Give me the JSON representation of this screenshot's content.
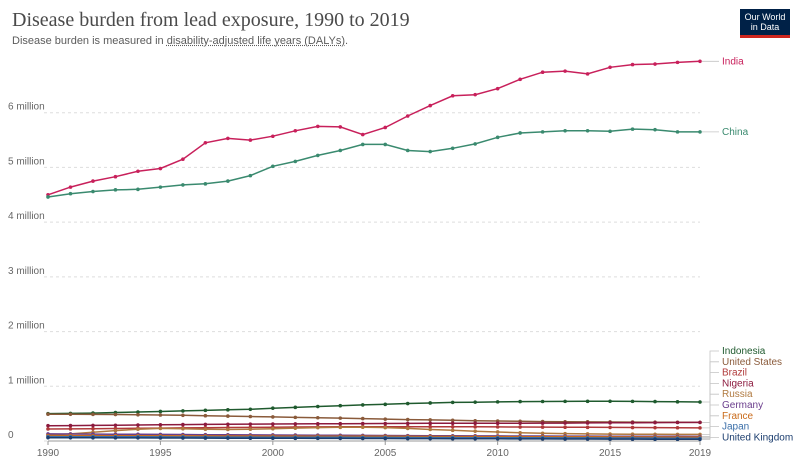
{
  "header": {
    "title": "Disease burden from lead exposure, 1990 to 2019",
    "subtitle_prefix": "Disease burden is measured in ",
    "subtitle_link": "disability-adjusted life years (DALYs)",
    "subtitle_suffix": ".",
    "logo_line1": "Our World",
    "logo_line2": "in Data",
    "logo_bg": "#002147",
    "logo_accent": "#ce261e"
  },
  "chart_data": {
    "type": "line",
    "title": "Disease burden from lead exposure, 1990 to 2019",
    "xlabel": "",
    "ylabel": "",
    "xlim": [
      1990,
      2019
    ],
    "ylim": [
      0,
      7000000
    ],
    "grid": true,
    "x_ticks": [
      1990,
      1995,
      2000,
      2005,
      2010,
      2015,
      2019
    ],
    "y_ticks": [
      {
        "value": 0,
        "label": "0"
      },
      {
        "value": 1000000,
        "label": "1 million"
      },
      {
        "value": 2000000,
        "label": "2 million"
      },
      {
        "value": 3000000,
        "label": "3 million"
      },
      {
        "value": 4000000,
        "label": "4 million"
      },
      {
        "value": 5000000,
        "label": "5 million"
      },
      {
        "value": 6000000,
        "label": "6 million"
      }
    ],
    "legend_placement": "right, inline labels",
    "x": [
      1990,
      1991,
      1992,
      1993,
      1994,
      1995,
      1996,
      1997,
      1998,
      1999,
      2000,
      2001,
      2002,
      2003,
      2004,
      2005,
      2006,
      2007,
      2008,
      2009,
      2010,
      2011,
      2012,
      2013,
      2014,
      2015,
      2016,
      2017,
      2018,
      2019
    ],
    "series": [
      {
        "name": "India",
        "color": "#c8205b",
        "values": [
          4500000,
          4640000,
          4750000,
          4830000,
          4930000,
          4980000,
          5150000,
          5450000,
          5530000,
          5500000,
          5570000,
          5670000,
          5750000,
          5740000,
          5600000,
          5730000,
          5940000,
          6130000,
          6310000,
          6330000,
          6440000,
          6610000,
          6740000,
          6760000,
          6710000,
          6830000,
          6880000,
          6890000,
          6920000,
          6940000
        ]
      },
      {
        "name": "China",
        "color": "#3a8a6f",
        "values": [
          4460000,
          4520000,
          4560000,
          4590000,
          4600000,
          4640000,
          4680000,
          4700000,
          4750000,
          4850000,
          5020000,
          5110000,
          5220000,
          5310000,
          5420000,
          5420000,
          5310000,
          5290000,
          5350000,
          5430000,
          5550000,
          5630000,
          5650000,
          5670000,
          5670000,
          5660000,
          5700000,
          5690000,
          5650000,
          5650000
        ]
      },
      {
        "name": "Indonesia",
        "color": "#1f5a2e",
        "values": [
          500000,
          505000,
          510000,
          520000,
          530000,
          540000,
          550000,
          560000,
          570000,
          580000,
          600000,
          615000,
          630000,
          645000,
          660000,
          670000,
          685000,
          695000,
          705000,
          710000,
          715000,
          720000,
          722000,
          724000,
          725000,
          726000,
          724000,
          720000,
          716000,
          712000
        ]
      },
      {
        "name": "United States",
        "color": "#8a5a3a",
        "values": [
          490000,
          488000,
          486000,
          484000,
          480000,
          475000,
          470000,
          462000,
          455000,
          448000,
          440000,
          432000,
          425000,
          418000,
          410000,
          400000,
          392000,
          385000,
          378000,
          370000,
          365000,
          360000,
          355000,
          352000,
          350000,
          348000,
          346000,
          344000,
          342000,
          340000
        ]
      },
      {
        "name": "Brazil",
        "color": "#b03a3a",
        "values": [
          220000,
          222000,
          225000,
          228000,
          232000,
          236000,
          240000,
          243000,
          246000,
          249000,
          252000,
          255000,
          258000,
          260000,
          262000,
          262000,
          262000,
          261000,
          260000,
          259000,
          258000,
          256000,
          254000,
          252000,
          250000,
          248000,
          246000,
          244000,
          242000,
          240000
        ]
      },
      {
        "name": "Nigeria",
        "color": "#8c1a3e",
        "values": [
          280000,
          282000,
          285000,
          288000,
          292000,
          296000,
          300000,
          303000,
          306000,
          308000,
          310000,
          312000,
          314000,
          316000,
          318000,
          320000,
          322000,
          323000,
          324000,
          325000,
          325000,
          326000,
          327000,
          328000,
          330000,
          332000,
          334000,
          336000,
          338000,
          340000
        ]
      },
      {
        "name": "Russia",
        "color": "#b07a40",
        "values": [
          110000,
          130000,
          160000,
          190000,
          215000,
          230000,
          225000,
          215000,
          210000,
          215000,
          225000,
          235000,
          245000,
          250000,
          252000,
          245000,
          230000,
          210000,
          195000,
          180000,
          165000,
          150000,
          140000,
          135000,
          130000,
          127000,
          125000,
          123000,
          121000,
          120000
        ]
      },
      {
        "name": "Germany",
        "color": "#6a3d8c",
        "values": [
          130000,
          128000,
          126000,
          124000,
          122000,
          120000,
          118000,
          116000,
          114000,
          112000,
          110000,
          108000,
          106000,
          104000,
          102000,
          100000,
          98000,
          96000,
          95000,
          94000,
          93000,
          92000,
          91000,
          90000,
          89000,
          88000,
          87000,
          86000,
          85000,
          84000
        ]
      },
      {
        "name": "France",
        "color": "#c96a1a",
        "values": [
          100000,
          99000,
          98000,
          97000,
          96000,
          95000,
          94000,
          93000,
          92000,
          91000,
          90000,
          89000,
          88000,
          87000,
          86000,
          85000,
          84000,
          83000,
          82000,
          81000,
          80000,
          79000,
          78000,
          77000,
          76000,
          75000,
          74000,
          73000,
          72000,
          71000
        ]
      },
      {
        "name": "Japan",
        "color": "#3a6ea8",
        "values": [
          80000,
          79000,
          78000,
          77000,
          76000,
          75000,
          74000,
          73000,
          72000,
          71000,
          70000,
          69000,
          68000,
          67000,
          66000,
          65000,
          64000,
          63000,
          62000,
          61000,
          60000,
          59000,
          58000,
          57000,
          56000,
          55000,
          54000,
          53000,
          52000,
          51000
        ]
      },
      {
        "name": "United Kingdom",
        "color": "#1b3d6e",
        "values": [
          60000,
          59000,
          58000,
          57000,
          56000,
          55000,
          54000,
          53000,
          52000,
          51000,
          50000,
          49000,
          48000,
          47000,
          46000,
          45000,
          44000,
          43000,
          42000,
          41000,
          40000,
          39000,
          38000,
          37000,
          36000,
          35000,
          34000,
          33000,
          32000,
          31000
        ]
      }
    ]
  }
}
